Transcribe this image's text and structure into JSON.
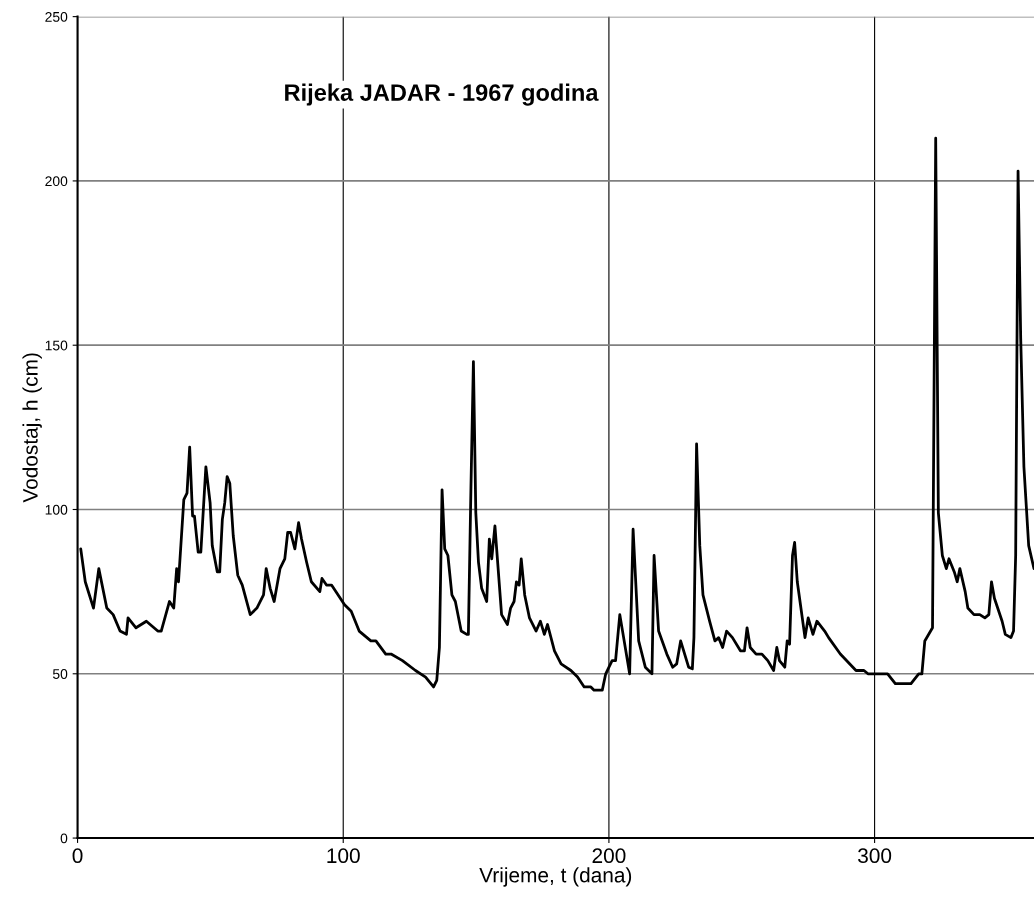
{
  "chart_data": {
    "type": "line",
    "title": "Rijeka JADAR - 1967 godina",
    "xlabel": "Vrijeme, t (dana)",
    "ylabel": "Vodostaj, h (cm)",
    "x": [
      1.2,
      2.9,
      6,
      8,
      11,
      13.4,
      16,
      18.4,
      19,
      22,
      25.9,
      30.2,
      31.5,
      34.6,
      36.2,
      37.3,
      38,
      40,
      41.2,
      42.2,
      43.3,
      44,
      45.4,
      46.4,
      48.3,
      49.9,
      50.7,
      52.6,
      53.5,
      54.5,
      55.4,
      56.3,
      57.3,
      58.6,
      60.3,
      62,
      65,
      67.5,
      70,
      71,
      72.5,
      74,
      76.2,
      78,
      79.1,
      80.2,
      81.8,
      83.2,
      84.3,
      86.2,
      88,
      91.2,
      92,
      93.7,
      95.6,
      100.5,
      103,
      106,
      110.4,
      112.3,
      116,
      118,
      122.3,
      127.2,
      131,
      134,
      135.2,
      136.2,
      137.2,
      138.2,
      139.4,
      140.9,
      142.2,
      144.4,
      146.5,
      147.1,
      148.1,
      149,
      149.9,
      150.9,
      152.1,
      154,
      155,
      155.9,
      157.1,
      159.6,
      161.8,
      163,
      164.3,
      165.2,
      166.2,
      167,
      168.3,
      170.1,
      172.6,
      174.2,
      175.7,
      176.9,
      179.5,
      182,
      185.7,
      188.2,
      190.7,
      193.2,
      194.4,
      197.5,
      198.8,
      201.2,
      202.5,
      204.1,
      207.8,
      209.1,
      211.2,
      213.7,
      216.2,
      217,
      218.7,
      221.8,
      224,
      225.5,
      227,
      230,
      231.4,
      232,
      233,
      234.2,
      235.4,
      237.9,
      239.9,
      241.3,
      242.8,
      244.3,
      246.5,
      249.5,
      251,
      252,
      253.2,
      255.4,
      257.6,
      259.8,
      262,
      263.2,
      264.2,
      266.2,
      267.1,
      268,
      269.1,
      269.9,
      270.9,
      272.1,
      273.8,
      275,
      276.8,
      278.3,
      281.2,
      282.7,
      287.1,
      293,
      296,
      297.5,
      304.9,
      307.8,
      313.7,
      316.6,
      317.8,
      318.9,
      321.8,
      323,
      324,
      325.5,
      327,
      328,
      330,
      331.1,
      332.1,
      334.1,
      335.1,
      337.4,
      339.6,
      341.5,
      343,
      344,
      345.1,
      348,
      349.2,
      351.3,
      352.3,
      353.1,
      354,
      355,
      356.2,
      358,
      360
    ],
    "series": [
      {
        "color": "#000000",
        "values": [
          88,
          78,
          70,
          82,
          70,
          68,
          63,
          62,
          67,
          64,
          66,
          63,
          63,
          72,
          70,
          82,
          78,
          103,
          105,
          119,
          98,
          98,
          87,
          87,
          113,
          102,
          89,
          81,
          81,
          97,
          102,
          110,
          108,
          92,
          80,
          77,
          68,
          70,
          74,
          82,
          76,
          72,
          82,
          85,
          93,
          93,
          88,
          96,
          91,
          84,
          78,
          75,
          79,
          77,
          77,
          71,
          69,
          63,
          60,
          60,
          56,
          56,
          54,
          51,
          49,
          46,
          48,
          58,
          106,
          88,
          86,
          74,
          72,
          63,
          62,
          62,
          108,
          145,
          99,
          84,
          76,
          72,
          91,
          85,
          95,
          68,
          65,
          70,
          72,
          78,
          77,
          85,
          74,
          67,
          63,
          66,
          62,
          65,
          57,
          53,
          51,
          49,
          46,
          46,
          45,
          45,
          50,
          54,
          54,
          68,
          50,
          94,
          60,
          52,
          50,
          86,
          63,
          56,
          52,
          53,
          60,
          52,
          51.5,
          61,
          120,
          89,
          74,
          66,
          60,
          61,
          58,
          63,
          61,
          57,
          57,
          64,
          58,
          56,
          56,
          54,
          51,
          58,
          54,
          52,
          60,
          59,
          86,
          90,
          78,
          71,
          61,
          67,
          62,
          66,
          63,
          61,
          56,
          51,
          51,
          50,
          50,
          47,
          47,
          50,
          50,
          60,
          64,
          213,
          99,
          86,
          82,
          85,
          81,
          78,
          82,
          75,
          70,
          68,
          68,
          67,
          68,
          78,
          73,
          66,
          62,
          61,
          63,
          86,
          203,
          152,
          113,
          89,
          82
        ]
      }
    ],
    "xlim": [
      0,
      360
    ],
    "ylim": [
      0,
      250
    ],
    "xticks": [
      0,
      100,
      200,
      300
    ],
    "yticks": [
      0,
      50,
      100,
      150,
      200,
      250
    ],
    "grid": true,
    "legend": false
  }
}
